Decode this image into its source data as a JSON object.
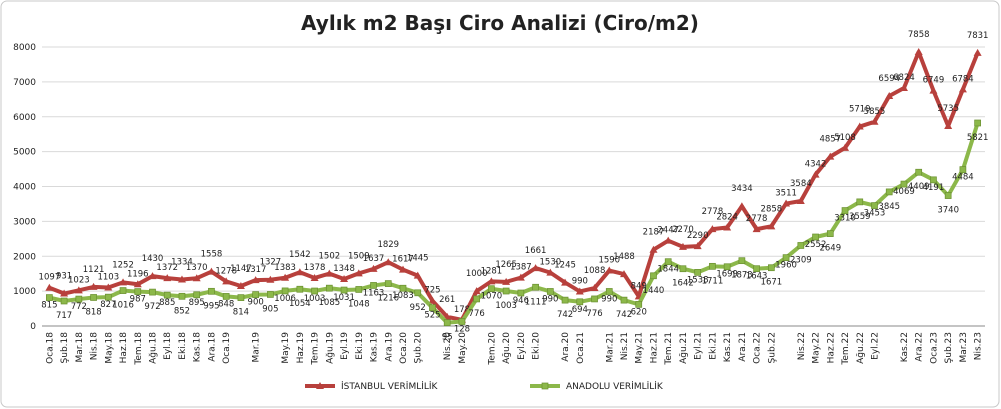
{
  "chart_data": {
    "type": "line",
    "title": "Aylık m2 Başı Ciro Analizi (Ciro/m2)",
    "categories": [
      "Oca.18",
      "Şub.18",
      "Mar.18",
      "Nis.18",
      "May.18",
      "Haz.18",
      "Tem.18",
      "Ağu.18",
      "Eyl.18",
      "Eki.18",
      "Kas.18",
      "Ara.18",
      "Oca.19",
      null,
      "Mar.19",
      null,
      "May.19",
      "Haz.19",
      "Tem.19",
      "Ağu.19",
      "Eyl.19",
      "Eki.19",
      "Kas.19",
      "Ara.19",
      "Oca.20",
      "Şub.20",
      null,
      "Nis.20",
      "May.20",
      null,
      "Tem.20",
      "Ağu.20",
      "Eyl.20",
      "Eki.20",
      null,
      "Ara.20",
      "Oca.21",
      null,
      "Mar.21",
      "Nis.21",
      "May.21",
      "Haz.21",
      "Tem.21",
      "Ağu.21",
      "Eyl.21",
      "Eki.21",
      "Kas.21",
      "Ara.21",
      "Oca.22",
      "Şub.22",
      null,
      "Nis.22",
      "May.22",
      "Haz.22",
      "Tem.22",
      "Ağu.22",
      "Eyl.22",
      null,
      "Kas.22",
      "Ara.22",
      "Oca.23",
      "Şub.23",
      "Mar.23",
      "Nis.23"
    ],
    "series": [
      {
        "name": "İSTANBUL VERİMLİLİK",
        "color": "#b8403c",
        "values": [
          1097,
          931,
          1023,
          1121,
          1103,
          1252,
          1196,
          1430,
          1372,
          1334,
          1370,
          1558,
          1278,
          1147,
          1317,
          1327,
          1383,
          1542,
          1378,
          1502,
          1348,
          1509,
          1637,
          1829,
          1617,
          1445,
          725,
          261,
          178,
          1000,
          1281,
          1265,
          1387,
          1661,
          1530,
          1245,
          990,
          1088,
          1590,
          1488,
          849,
          2187,
          2447,
          2270,
          2290,
          2778,
          2824,
          3434,
          2778,
          2858,
          3511,
          3584,
          4342,
          4857,
          5108,
          5719,
          5855,
          6594,
          6824,
          7858,
          6749,
          5735,
          6784,
          7831
        ]
      },
      {
        "name": "ANADOLU VERİMLİLİK",
        "color": "#8cb84a",
        "values": [
          815,
          717,
          772,
          818,
          827,
          1016,
          987,
          972,
          885,
          852,
          895,
          995,
          848,
          814,
          900,
          905,
          1006,
          1054,
          1003,
          1085,
          1031,
          1048,
          1163,
          1216,
          1083,
          952,
          525,
          95,
          128,
          776,
          1070,
          1003,
          946,
          1111,
          990,
          742,
          694,
          776,
          990,
          742,
          620,
          1440,
          1844,
          1642,
          1538,
          1711,
          1699,
          1873,
          1643,
          1671,
          1960,
          2309,
          2552,
          2649,
          3310,
          3559,
          3453,
          3845,
          4069,
          4409,
          4191,
          3740,
          4484,
          5821
        ]
      }
    ],
    "ylim": [
      0,
      8000
    ],
    "yticks": [
      0,
      1000,
      2000,
      3000,
      4000,
      5000,
      6000,
      7000,
      8000
    ],
    "grid": true,
    "legend": "bottom"
  }
}
